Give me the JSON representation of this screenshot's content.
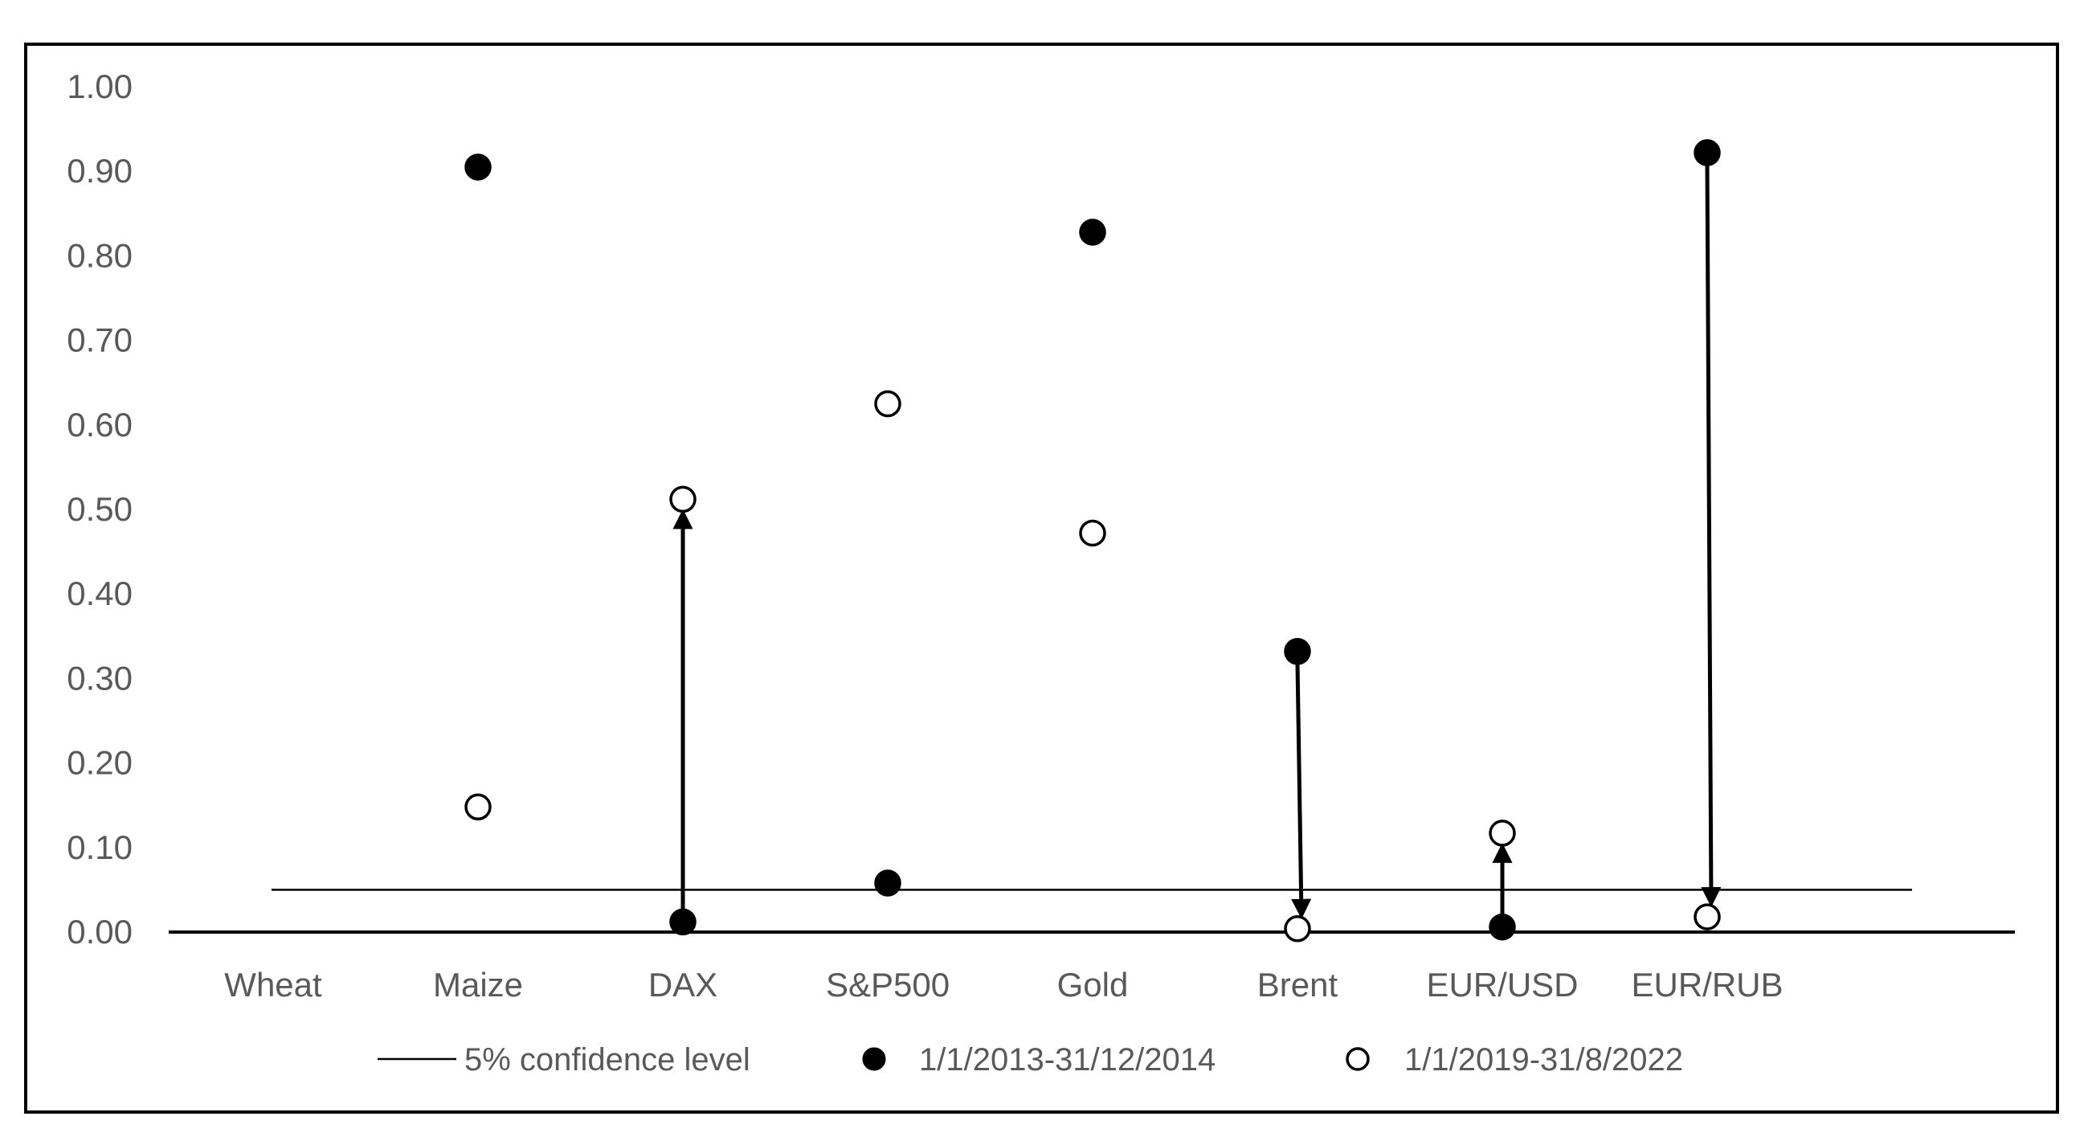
{
  "chart_data": {
    "type": "scatter",
    "categories": [
      "Wheat",
      "Maize",
      "DAX",
      "S&P500",
      "Gold",
      "Brent",
      "EUR/USD",
      "EUR/RUB"
    ],
    "ylim": [
      0,
      1
    ],
    "yticks": [
      "0.00",
      "0.10",
      "0.20",
      "0.30",
      "0.40",
      "0.50",
      "0.60",
      "0.70",
      "0.80",
      "0.90",
      "1.00"
    ],
    "ytick_values": [
      0,
      0.1,
      0.2,
      0.3,
      0.4,
      0.5,
      0.6,
      0.7,
      0.8,
      0.9,
      1.0
    ],
    "confidence_level": 0.05,
    "series": [
      {
        "name": "1/1/2013-31/12/2014",
        "marker": "filled",
        "values": [
          null,
          0.905,
          0.012,
          0.058,
          0.828,
          0.332,
          0.006,
          0.922
        ]
      },
      {
        "name": "1/1/2019-31/8/2022",
        "marker": "hollow",
        "values": [
          null,
          0.148,
          0.512,
          0.625,
          0.472,
          0.004,
          0.117,
          0.018
        ]
      }
    ],
    "arrows": [
      {
        "category": "DAX",
        "from": 0.012,
        "to": 0.512
      },
      {
        "category": "Brent",
        "from": 0.332,
        "to": 0.004
      },
      {
        "category": "EUR/USD",
        "from": 0.006,
        "to": 0.117
      },
      {
        "category": "EUR/RUB",
        "from": 0.922,
        "to": 0.018
      }
    ],
    "legend": {
      "placement": "bottom",
      "items": [
        "5% confidence level",
        "1/1/2013-31/12/2014",
        "1/1/2019-31/8/2022"
      ]
    },
    "colors": {
      "marker": "#000000",
      "text": "#595959",
      "frame": "#000000"
    }
  }
}
